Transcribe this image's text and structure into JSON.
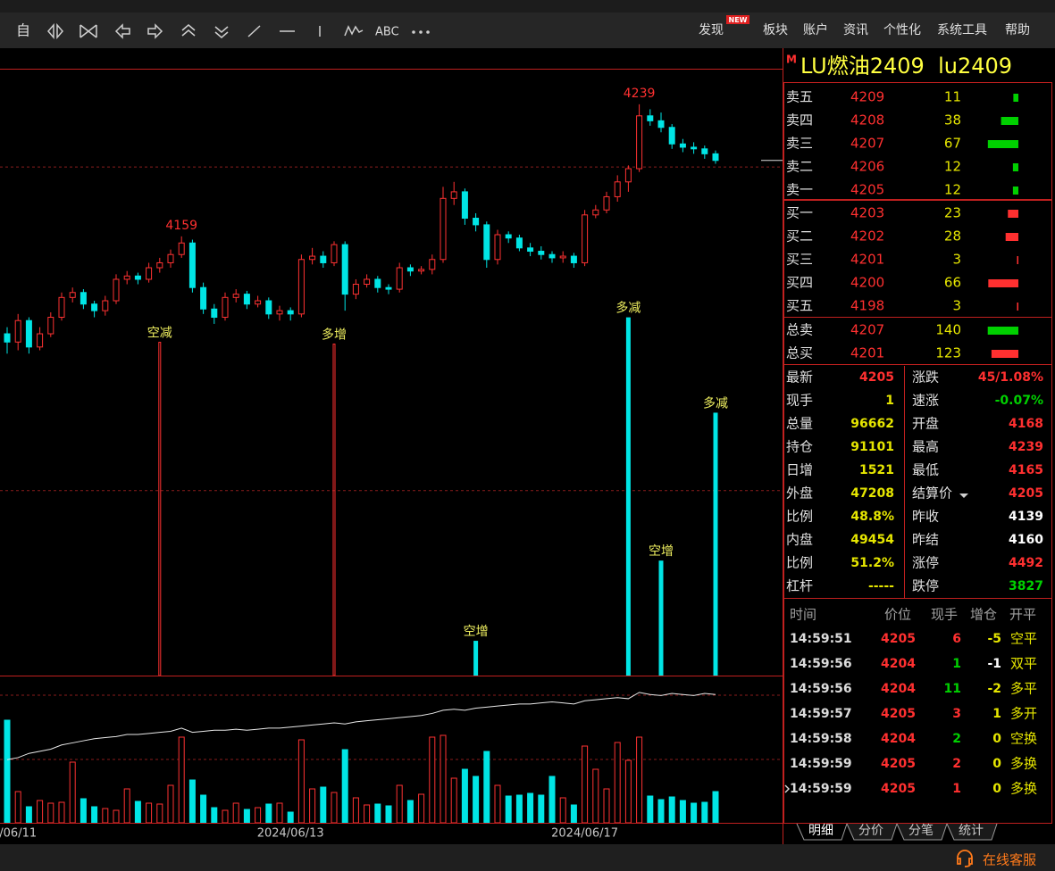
{
  "toolbar": {
    "auto": "自",
    "text_tool": "ABC"
  },
  "menu": {
    "items": [
      "发现",
      "板块",
      "账户",
      "资讯",
      "个性化",
      "系统工具",
      "帮助"
    ],
    "badge": "NEW"
  },
  "chart": {
    "ylim": [
      3893,
      4260
    ],
    "hlines": [
      4201,
      4005
    ],
    "last_price": 4205,
    "up_color": "#ff3232",
    "down_color": "#00e5e5",
    "candles": [
      [
        4100,
        4104,
        4088,
        4095
      ],
      [
        4095,
        4112,
        4090,
        4108
      ],
      [
        4108,
        4110,
        4088,
        4092
      ],
      [
        4092,
        4104,
        4090,
        4100
      ],
      [
        4100,
        4113,
        4098,
        4110
      ],
      [
        4110,
        4125,
        4108,
        4122
      ],
      [
        4122,
        4128,
        4119,
        4125
      ],
      [
        4125,
        4127,
        4115,
        4118
      ],
      [
        4118,
        4120,
        4110,
        4114
      ],
      [
        4114,
        4123,
        4111,
        4120
      ],
      [
        4120,
        4136,
        4118,
        4133
      ],
      [
        4133,
        4138,
        4130,
        4135
      ],
      [
        4135,
        4137,
        4130,
        4133
      ],
      [
        4133,
        4143,
        4131,
        4140
      ],
      [
        4140,
        4146,
        4137,
        4143
      ],
      [
        4143,
        4151,
        4140,
        4148
      ],
      [
        4148,
        4159,
        4146,
        4155
      ],
      [
        4155,
        4157,
        4125,
        4128
      ],
      [
        4128,
        4131,
        4112,
        4115
      ],
      [
        4115,
        4118,
        4106,
        4110
      ],
      [
        4110,
        4125,
        4108,
        4122
      ],
      [
        4122,
        4127,
        4119,
        4124
      ],
      [
        4124,
        4126,
        4115,
        4118
      ],
      [
        4118,
        4123,
        4116,
        4120
      ],
      [
        4120,
        4122,
        4109,
        4112
      ],
      [
        4112,
        4117,
        4108,
        4114
      ],
      [
        4114,
        4116,
        4108,
        4112
      ],
      [
        4112,
        4148,
        4110,
        4145
      ],
      [
        4145,
        4152,
        4142,
        4147
      ],
      [
        4147,
        4150,
        4140,
        4143
      ],
      [
        4143,
        4156,
        4141,
        4154
      ],
      [
        4154,
        4156,
        4114,
        4124
      ],
      [
        4124,
        4133,
        4121,
        4130
      ],
      [
        4130,
        4136,
        4128,
        4133
      ],
      [
        4133,
        4135,
        4125,
        4128
      ],
      [
        4128,
        4130,
        4124,
        4127
      ],
      [
        4127,
        4143,
        4125,
        4140
      ],
      [
        4140,
        4142,
        4135,
        4138
      ],
      [
        4138,
        4141,
        4136,
        4139
      ],
      [
        4139,
        4148,
        4136,
        4145
      ],
      [
        4145,
        4189,
        4143,
        4182
      ],
      [
        4182,
        4192,
        4178,
        4186
      ],
      [
        4186,
        4188,
        4166,
        4170
      ],
      [
        4170,
        4173,
        4162,
        4166
      ],
      [
        4166,
        4168,
        4140,
        4145
      ],
      [
        4145,
        4163,
        4142,
        4160
      ],
      [
        4160,
        4162,
        4155,
        4158
      ],
      [
        4158,
        4160,
        4150,
        4152
      ],
      [
        4152,
        4155,
        4147,
        4150
      ],
      [
        4150,
        4153,
        4145,
        4148
      ],
      [
        4148,
        4150,
        4143,
        4146
      ],
      [
        4146,
        4150,
        4143,
        4147
      ],
      [
        4147,
        4149,
        4140,
        4143
      ],
      [
        4143,
        4175,
        4141,
        4172
      ],
      [
        4172,
        4178,
        4170,
        4175
      ],
      [
        4175,
        4186,
        4173,
        4183
      ],
      [
        4183,
        4196,
        4180,
        4192
      ],
      [
        4192,
        4202,
        4186,
        4200
      ],
      [
        4200,
        4239,
        4198,
        4232
      ],
      [
        4232,
        4236,
        4226,
        4229
      ],
      [
        4229,
        4234,
        4222,
        4225
      ],
      [
        4225,
        4227,
        4212,
        4215
      ],
      [
        4215,
        4218,
        4210,
        4213
      ],
      [
        4213,
        4216,
        4209,
        4212
      ],
      [
        4212,
        4214,
        4206,
        4209
      ],
      [
        4209,
        4211,
        4203,
        4205
      ]
    ],
    "high_marks": [
      {
        "index": 16,
        "value": 4159
      },
      {
        "index": 58,
        "value": 4239
      }
    ],
    "signal_lim": [
      0,
      6800
    ],
    "signals": [
      {
        "label": "空减",
        "index": 14,
        "value": 3740,
        "color": "#ff3030"
      },
      {
        "label": "多增",
        "index": 30,
        "value": 3720,
        "color": "#ff3030"
      },
      {
        "label": "空增",
        "index": 43,
        "value": 390,
        "color": "#00e5e5"
      },
      {
        "label": "多减",
        "index": 57,
        "value": 4020,
        "color": "#00e5e5"
      },
      {
        "label": "空增",
        "index": 60,
        "value": 1290,
        "color": "#00e5e5"
      },
      {
        "label": "多减",
        "index": 65,
        "value": 2950,
        "color": "#00e5e5"
      }
    ],
    "vol_lim": [
      0,
      1650
    ],
    "vol_hlines": [
      1430,
      710
    ],
    "volumes": [
      1150,
      350,
      180,
      250,
      220,
      230,
      680,
      270,
      180,
      160,
      140,
      380,
      240,
      220,
      210,
      420,
      960,
      480,
      310,
      170,
      140,
      220,
      150,
      170,
      210,
      220,
      120,
      930,
      380,
      400,
      340,
      820,
      280,
      200,
      210,
      190,
      420,
      250,
      320,
      960,
      980,
      500,
      600,
      520,
      800,
      420,
      300,
      310,
      330,
      310,
      520,
      280,
      200,
      860,
      600,
      380,
      900,
      700,
      960,
      300,
      260,
      290,
      250,
      220,
      230,
      350
    ],
    "oi_lim": [
      85000,
      92000
    ],
    "open_interest": [
      88000,
      88100,
      88300,
      88400,
      88500,
      88700,
      88800,
      88900,
      89000,
      89050,
      89100,
      89200,
      89200,
      89250,
      89300,
      89350,
      89500,
      89300,
      89350,
      89400,
      89400,
      89450,
      89400,
      89450,
      89500,
      89500,
      89550,
      89600,
      89650,
      89700,
      89750,
      89700,
      89800,
      89850,
      89900,
      89950,
      90000,
      90050,
      90100,
      90200,
      90350,
      90400,
      90350,
      90450,
      90500,
      90550,
      90600,
      90650,
      90650,
      90700,
      90750,
      90700,
      90650,
      90800,
      90850,
      90900,
      90950,
      90900,
      91200,
      91100,
      91050,
      91150,
      91100,
      91050,
      91150,
      91101
    ],
    "date_labels": [
      {
        "index": 1,
        "label": "/06/11"
      },
      {
        "index": 26,
        "label": "2024/06/13"
      },
      {
        "index": 53,
        "label": "2024/06/17"
      }
    ]
  },
  "quote": {
    "badge": "M",
    "title": "LU燃油2409  lu2409",
    "asks": [
      {
        "label": "卖五",
        "price": 4209,
        "vol": 11
      },
      {
        "label": "卖四",
        "price": 4208,
        "vol": 38
      },
      {
        "label": "卖三",
        "price": 4207,
        "vol": 67
      },
      {
        "label": "卖二",
        "price": 4206,
        "vol": 12
      },
      {
        "label": "卖一",
        "price": 4205,
        "vol": 12
      }
    ],
    "bids": [
      {
        "label": "买一",
        "price": 4203,
        "vol": 23
      },
      {
        "label": "买二",
        "price": 4202,
        "vol": 28
      },
      {
        "label": "买三",
        "price": 4201,
        "vol": 3
      },
      {
        "label": "买四",
        "price": 4200,
        "vol": 66
      },
      {
        "label": "买五",
        "price": 4198,
        "vol": 3
      }
    ],
    "totals": [
      {
        "label": "总卖",
        "price": 4207,
        "vol": 140,
        "color": "#00d000"
      },
      {
        "label": "总买",
        "price": 4201,
        "vol": 123,
        "color": "#ff3030"
      }
    ],
    "stats_left": [
      {
        "label": "最新",
        "value": 4205,
        "color": "#ff3030"
      },
      {
        "label": "现手",
        "value": 1,
        "color": "#e6e600"
      },
      {
        "label": "总量",
        "value": 96662,
        "color": "#e6e600"
      },
      {
        "label": "持仓",
        "value": 91101,
        "color": "#e6e600"
      },
      {
        "label": "日增",
        "value": 1521,
        "color": "#e6e600"
      },
      {
        "label": "外盘",
        "value": 47208,
        "color": "#e6e600"
      },
      {
        "label": "比例",
        "value": "48.8%",
        "color": "#e6e600"
      },
      {
        "label": "内盘",
        "value": 49454,
        "color": "#e6e600"
      },
      {
        "label": "比例",
        "value": "51.2%",
        "color": "#e6e600"
      },
      {
        "label": "杠杆",
        "value": "-----",
        "color": "#e6e600"
      }
    ],
    "stats_right": [
      {
        "label": "涨跌",
        "value": "45/1.08%",
        "color": "#ff3030"
      },
      {
        "label": "速涨",
        "value": "-0.07%",
        "color": "#00d000"
      },
      {
        "label": "开盘",
        "value": 4168,
        "color": "#ff3030"
      },
      {
        "label": "最高",
        "value": 4239,
        "color": "#ff3030"
      },
      {
        "label": "最低",
        "value": 4165,
        "color": "#ff3030"
      },
      {
        "label": "结算价",
        "value": 4205,
        "color": "#ff3030"
      },
      {
        "label": "昨收",
        "value": 4139,
        "color": "#ffffff"
      },
      {
        "label": "昨结",
        "value": 4160,
        "color": "#ffffff"
      },
      {
        "label": "涨停",
        "value": 4492,
        "color": "#ff3030"
      },
      {
        "label": "跌停",
        "value": 3827,
        "color": "#00d000"
      }
    ],
    "trades_header": [
      "时间",
      "价位",
      "现手",
      "增仓",
      "开平"
    ],
    "trades": [
      {
        "time": "14:59:51",
        "price": 4205,
        "qty": 6,
        "chg": -5,
        "type": "空平",
        "qty_color": "#ff3030",
        "chg_color": "#e6e600"
      },
      {
        "time": "14:59:56",
        "price": 4204,
        "qty": 1,
        "chg": -1,
        "type": "双平",
        "qty_color": "#00d000",
        "chg_color": "#ffffff"
      },
      {
        "time": "14:59:56",
        "price": 4204,
        "qty": 11,
        "chg": -2,
        "type": "多平",
        "qty_color": "#00d000",
        "chg_color": "#e6e600"
      },
      {
        "time": "14:59:57",
        "price": 4205,
        "qty": 3,
        "chg": 1,
        "type": "多开",
        "qty_color": "#ff3030",
        "chg_color": "#e6e600"
      },
      {
        "time": "14:59:58",
        "price": 4204,
        "qty": 2,
        "chg": 0,
        "type": "空换",
        "qty_color": "#00d000",
        "chg_color": "#e6e600"
      },
      {
        "time": "14:59:59",
        "price": 4205,
        "qty": 2,
        "chg": 0,
        "type": "多换",
        "qty_color": "#ff3030",
        "chg_color": "#e6e600"
      },
      {
        "time": "14:59:59",
        "price": 4205,
        "qty": 1,
        "chg": 0,
        "type": "多换",
        "qty_color": "#ff3030",
        "chg_color": "#e6e600"
      }
    ],
    "tabs": [
      "明细",
      "分价",
      "分笔",
      "统计"
    ]
  },
  "status": {
    "service": "在线客服"
  }
}
